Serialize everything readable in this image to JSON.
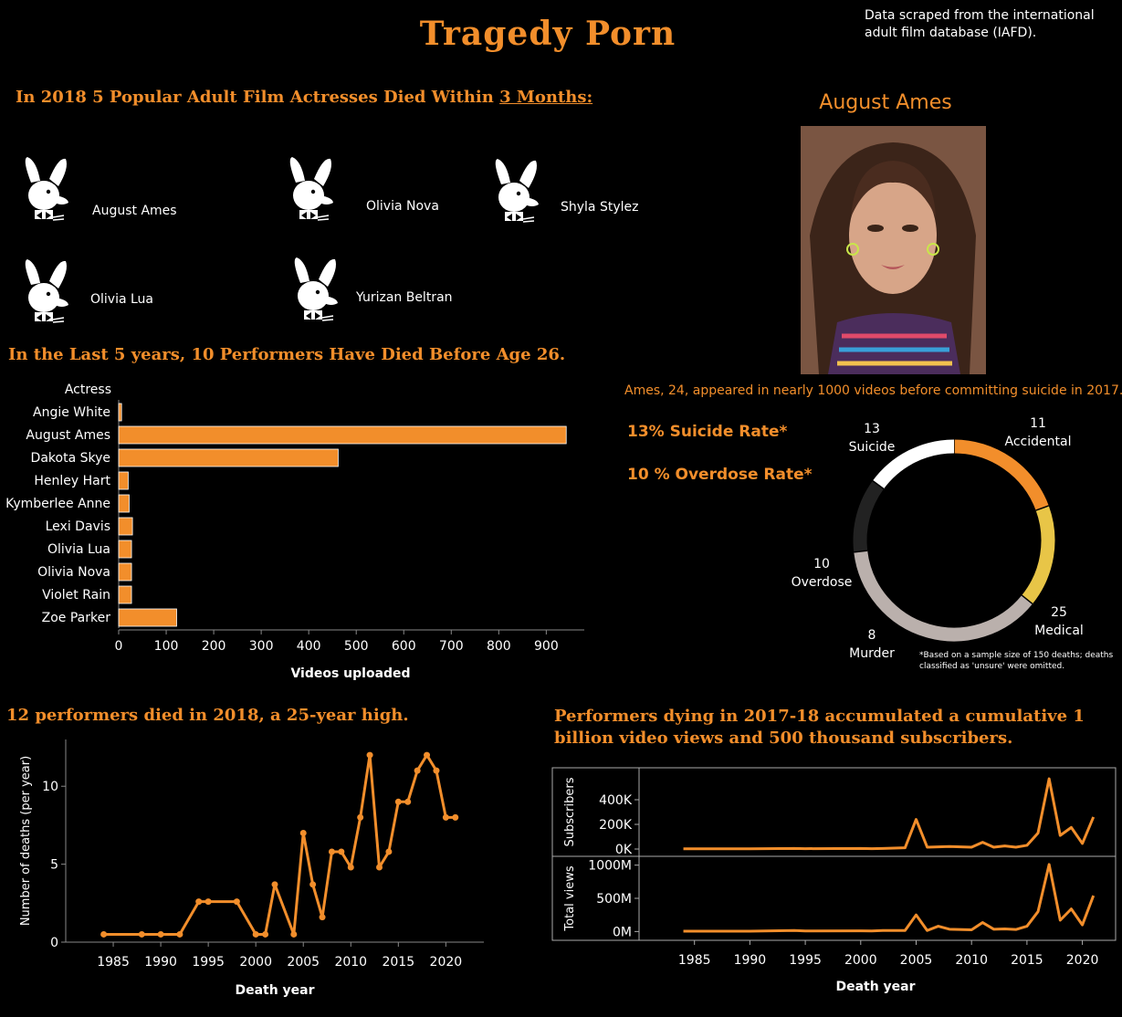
{
  "title": "Tragedy Porn",
  "source_note": "Data scraped from the international adult film database (IAFD).",
  "section1": {
    "heading_prefix": "In 2018 5 Popular Adult  Film Actresses Died Within ",
    "heading_underlined": "3 Months:",
    "actresses": [
      "August Ames",
      "Olivia Nova",
      "Shyla Stylez",
      "Olivia Lua",
      "Yurizan Beltran"
    ],
    "icon": "playboy-bunny-icon"
  },
  "profile": {
    "name": "August Ames",
    "caption": "Ames, 24, appeared in nearly 1000 videos before committing suicide in 2017."
  },
  "section2": {
    "heading": "In the Last 5 years, 10 Performers Have Died Before Age 26."
  },
  "section3": {
    "heading": "12 performers died in 2018, a 25-year high."
  },
  "section4": {
    "heading_line1": "Performers dying in 2017-18 accumulated a cumulative 1",
    "heading_line2": "billion video views and 500 thousand subscribers."
  },
  "rates": {
    "suicide": "13% Suicide Rate*",
    "overdose": "10 % Overdose Rate*"
  },
  "footnote": "*Based on a sample size of 150 deaths; deaths classified as 'unsure' were omitted.",
  "colors": {
    "accent": "#f28e2b",
    "accidental": "#e8c547",
    "medical": "#bab0ac",
    "murder": "#222222",
    "overdose": "#ffffff",
    "background": "#000000"
  },
  "chart_data": [
    {
      "type": "bar",
      "orientation": "horizontal",
      "ylabel": "Actress",
      "xlabel": "Videos uploaded",
      "categories": [
        "Angie White",
        "August Ames",
        "Dakota Skye",
        "Henley Hart",
        "Kymberlee Anne",
        "Lexi Davis",
        "Olivia Lua",
        "Olivia Nova",
        "Violet Rain",
        "Zoe Parker"
      ],
      "values": [
        6,
        942,
        462,
        20,
        22,
        29,
        27,
        27,
        27,
        122
      ],
      "xticks": [
        0,
        100,
        200,
        300,
        400,
        500,
        600,
        700,
        800,
        900
      ],
      "xlim": [
        0,
        980
      ]
    },
    {
      "type": "pie",
      "variant": "donut",
      "slices": [
        {
          "label": "Suicide",
          "value": 13
        },
        {
          "label": "Accidental",
          "value": 11
        },
        {
          "label": "Medical",
          "value": 25
        },
        {
          "label": "Murder",
          "value": 8
        },
        {
          "label": "Overdose",
          "value": 10
        }
      ]
    },
    {
      "type": "line",
      "xlabel": "Death year",
      "ylabel": "Number of deaths (per year)",
      "xticks": [
        1985,
        1990,
        1995,
        2000,
        2005,
        2010,
        2015,
        2020
      ],
      "yticks": [
        0,
        5,
        10
      ],
      "xlim": [
        1980,
        2024
      ],
      "ylim": [
        0,
        13
      ],
      "x": [
        1984,
        1988,
        1990,
        1992,
        1994,
        1995,
        1998,
        2000,
        2001,
        2002,
        2004,
        2005,
        2006,
        2007,
        2008,
        2009,
        2010,
        2011,
        2012,
        2013,
        2014,
        2015,
        2016,
        2017,
        2018,
        2019,
        2020,
        2021
      ],
      "y": [
        0.5,
        0.5,
        0.5,
        0.5,
        2.6,
        2.6,
        2.6,
        0.5,
        0.5,
        3.7,
        0.5,
        7,
        3.7,
        1.6,
        5.8,
        5.8,
        4.8,
        8,
        12,
        4.8,
        5.8,
        9,
        9,
        11,
        12,
        11,
        8,
        8
      ]
    },
    {
      "type": "line",
      "xlabel": "Death year",
      "xticks": [
        1985,
        1990,
        1995,
        2000,
        2005,
        2010,
        2015,
        2020
      ],
      "xlim": [
        1980,
        2023
      ],
      "series": [
        {
          "name": "Subscribers",
          "yticks": [
            {
              "v": 0,
              "label": "0K"
            },
            {
              "v": 200000,
              "label": "200K"
            },
            {
              "v": 400000,
              "label": "400K"
            }
          ],
          "ylim": [
            0,
            600000
          ],
          "x": [
            1984,
            1990,
            1994,
            1995,
            2000,
            2001,
            2002,
            2004,
            2005,
            2006,
            2008,
            2010,
            2011,
            2012,
            2013,
            2014,
            2015,
            2016,
            2017,
            2018,
            2019,
            2020,
            2021
          ],
          "y": [
            2000,
            2000,
            5000,
            3000,
            5000,
            3000,
            5000,
            10000,
            240000,
            15000,
            20000,
            15000,
            55000,
            15000,
            25000,
            15000,
            30000,
            130000,
            570000,
            110000,
            175000,
            45000,
            260000
          ]
        },
        {
          "name": "Total views",
          "yticks": [
            {
              "v": 0,
              "label": "0M"
            },
            {
              "v": 500000000,
              "label": "500M"
            },
            {
              "v": 1000000000,
              "label": "1000M"
            }
          ],
          "ylim": [
            -50000000,
            1050000000
          ],
          "x": [
            1984,
            1990,
            1994,
            1995,
            2000,
            2001,
            2002,
            2004,
            2005,
            2006,
            2007,
            2008,
            2010,
            2011,
            2012,
            2013,
            2014,
            2015,
            2016,
            2017,
            2018,
            2019,
            2020,
            2021
          ],
          "y": [
            5000000,
            5000000,
            15000000,
            8000000,
            10000000,
            8000000,
            15000000,
            15000000,
            250000000,
            15000000,
            80000000,
            35000000,
            25000000,
            135000000,
            35000000,
            40000000,
            30000000,
            80000000,
            300000000,
            1010000000,
            170000000,
            340000000,
            100000000,
            540000000
          ]
        }
      ]
    }
  ]
}
